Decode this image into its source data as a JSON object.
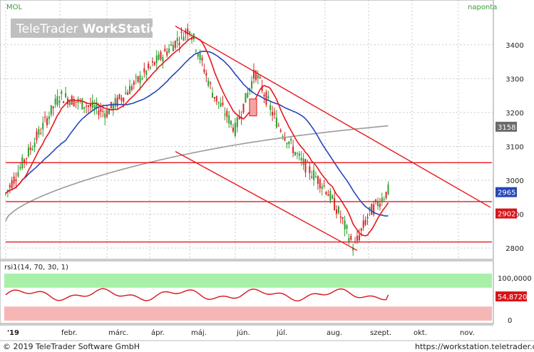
{
  "header": {
    "ticker": "MOL",
    "period": "naponta"
  },
  "watermark": {
    "brand": "TeleTrader",
    "product": "WorkStation"
  },
  "footer": {
    "copyright": "© 2019 TeleTrader Software GmbH",
    "url": "https://workstation.teletrader.com"
  },
  "rsi_panel": {
    "label": "rsi1(14, 70, 30, 1)",
    "ticks": [
      "100,0000",
      "0"
    ],
    "last_value_label": "54,8720"
  },
  "colors": {
    "up": "#2ca02c",
    "down": "#d62728",
    "sma_short": "#e8161b",
    "sma_mid": "#2647b8",
    "sma_long": "#9a9a9a",
    "trendline": "#e8161b",
    "rsi_line": "#d6161b",
    "rsi_overbought_zone": "#a8f0a8",
    "rsi_oversold_zone": "#f7b6b6",
    "grid": "#c9c9c9"
  },
  "chart_data": {
    "type": "candlestick",
    "x_labels": [
      "'19",
      "febr.",
      "márc.",
      "ápr.",
      "máj.",
      "jún.",
      "júl.",
      "aug.",
      "szept.",
      "okt.",
      "nov."
    ],
    "y_ticks": [
      2800,
      2900,
      3000,
      3100,
      3200,
      3300,
      3400
    ],
    "ylim": [
      2775,
      3490
    ],
    "price_path": [
      [
        "'19",
        2960
      ],
      [
        "febr.",
        3250
      ],
      [
        "márc.",
        3200
      ],
      [
        "ápr.",
        3330
      ],
      [
        "máj.",
        3450
      ],
      [
        "máj.",
        3260
      ],
      [
        "jún.",
        3150
      ],
      [
        "jún.",
        3320
      ],
      [
        "júl.",
        3180
      ],
      [
        "júl.",
        3060
      ],
      [
        "aug.",
        2980
      ],
      [
        "aug.",
        2900
      ],
      [
        "aug.",
        2800
      ],
      [
        "szept.",
        2900
      ],
      [
        "szept.",
        2970
      ]
    ],
    "series_last_labels": {
      "sma_long": "3158",
      "sma_mid": "2965",
      "sma_short": "2902"
    },
    "annotations": [
      {
        "type": "trendline",
        "label": "descending channel upper",
        "from": [
          "máj.",
          3455
        ],
        "to": [
          "nov.",
          2920
        ]
      },
      {
        "type": "trendline",
        "label": "descending channel lower",
        "from": [
          "máj.",
          3085
        ],
        "to": [
          "aug.",
          2793
        ]
      },
      {
        "type": "hline",
        "value": 3052
      },
      {
        "type": "hline",
        "value": 2937
      },
      {
        "type": "hline",
        "value": 2818
      }
    ],
    "rsi": {
      "levels": [
        30,
        70
      ],
      "ylim": [
        0,
        100
      ],
      "last": 54.872
    },
    "grid": true
  }
}
